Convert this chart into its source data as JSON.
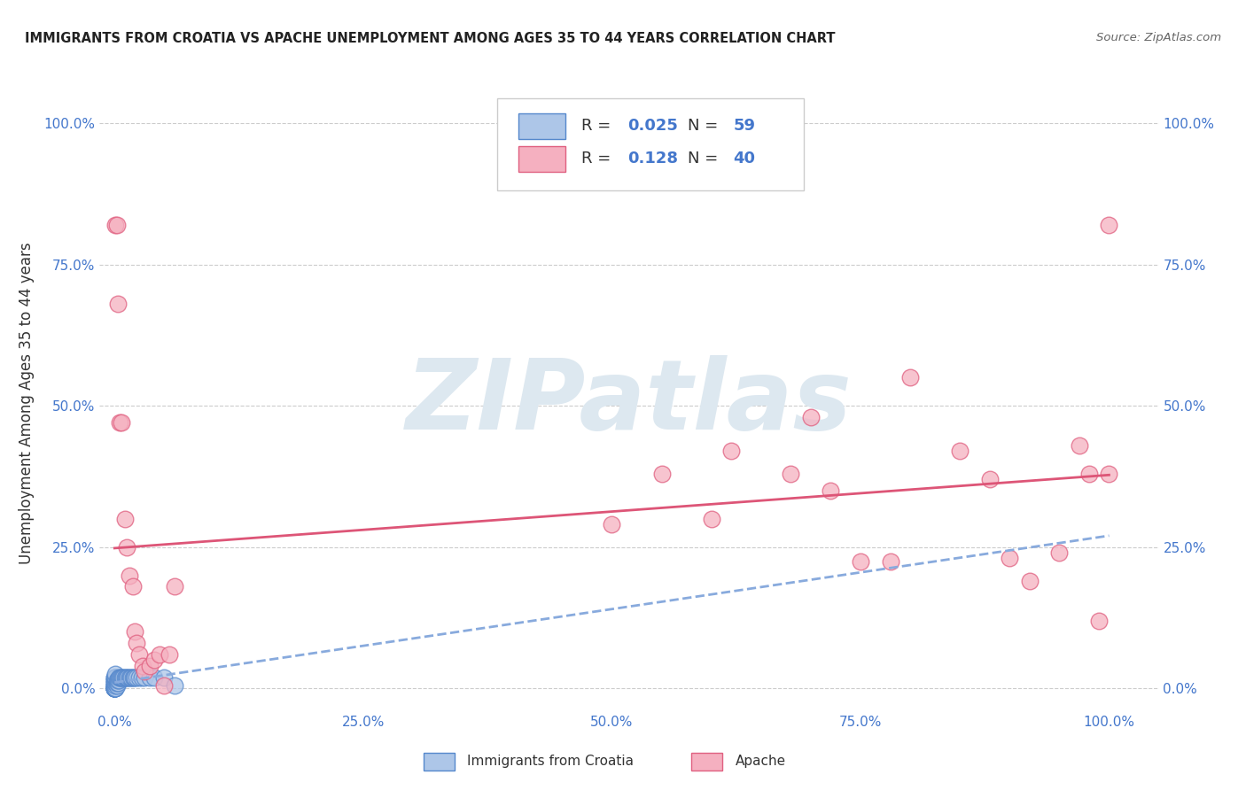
{
  "title": "IMMIGRANTS FROM CROATIA VS APACHE UNEMPLOYMENT AMONG AGES 35 TO 44 YEARS CORRELATION CHART",
  "source": "Source: ZipAtlas.com",
  "ylabel": "Unemployment Among Ages 35 to 44 years",
  "legend_labels": [
    "Immigrants from Croatia",
    "Apache"
  ],
  "r_values": [
    0.025,
    0.128
  ],
  "n_values": [
    59,
    40
  ],
  "blue_fill": "#adc6e8",
  "blue_edge": "#5588cc",
  "pink_fill": "#f5b0c0",
  "pink_edge": "#e06080",
  "blue_line_color": "#88aadd",
  "pink_line_color": "#dd5577",
  "axis_tick_color": "#4477cc",
  "title_color": "#222222",
  "source_color": "#666666",
  "watermark_color": "#dde8f0",
  "grid_color": "#cccccc",
  "background_color": "#ffffff",
  "blue_x": [
    0.0,
    0.0,
    0.0,
    0.0,
    0.0,
    0.0,
    0.0,
    0.0,
    0.0,
    0.0,
    0.0,
    0.0,
    0.0,
    0.0,
    0.0,
    0.0,
    0.0,
    0.0,
    0.0,
    0.0,
    0.001,
    0.001,
    0.001,
    0.001,
    0.001,
    0.001,
    0.001,
    0.001,
    0.001,
    0.002,
    0.002,
    0.002,
    0.003,
    0.003,
    0.004,
    0.004,
    0.005,
    0.006,
    0.007,
    0.008,
    0.009,
    0.01,
    0.011,
    0.012,
    0.013,
    0.015,
    0.016,
    0.017,
    0.018,
    0.019,
    0.02,
    0.022,
    0.025,
    0.027,
    0.03,
    0.035,
    0.04,
    0.05,
    0.06
  ],
  "blue_y": [
    0.0,
    0.0,
    0.0,
    0.0,
    0.0,
    0.0,
    0.0,
    0.0,
    0.0,
    0.0,
    0.005,
    0.005,
    0.005,
    0.01,
    0.01,
    0.015,
    0.015,
    0.02,
    0.02,
    0.0,
    0.0,
    0.0,
    0.005,
    0.01,
    0.01,
    0.015,
    0.02,
    0.02,
    0.025,
    0.005,
    0.01,
    0.015,
    0.01,
    0.015,
    0.015,
    0.02,
    0.02,
    0.02,
    0.02,
    0.02,
    0.02,
    0.02,
    0.02,
    0.02,
    0.02,
    0.02,
    0.02,
    0.02,
    0.02,
    0.02,
    0.02,
    0.02,
    0.02,
    0.02,
    0.02,
    0.02,
    0.02,
    0.02,
    0.005
  ],
  "pink_x": [
    0.001,
    0.002,
    0.003,
    0.005,
    0.007,
    0.01,
    0.012,
    0.015,
    0.018,
    0.02,
    0.022,
    0.025,
    0.028,
    0.03,
    0.035,
    0.04,
    0.045,
    0.05,
    0.055,
    0.06,
    0.55,
    0.62,
    0.68,
    0.72,
    0.78,
    0.8,
    0.85,
    0.88,
    0.9,
    0.92,
    0.95,
    0.97,
    0.98,
    0.99,
    1.0,
    1.0,
    0.5,
    0.6,
    0.7,
    0.75
  ],
  "pink_y": [
    0.82,
    0.82,
    0.68,
    0.47,
    0.47,
    0.3,
    0.25,
    0.2,
    0.18,
    0.1,
    0.08,
    0.06,
    0.04,
    0.03,
    0.04,
    0.05,
    0.06,
    0.005,
    0.06,
    0.18,
    0.38,
    0.42,
    0.38,
    0.35,
    0.225,
    0.55,
    0.42,
    0.37,
    0.23,
    0.19,
    0.24,
    0.43,
    0.38,
    0.12,
    0.82,
    0.38,
    0.29,
    0.3,
    0.48,
    0.225
  ],
  "grid_ticks": [
    0.0,
    0.25,
    0.5,
    0.75,
    1.0
  ],
  "tick_labels": [
    "0.0%",
    "25.0%",
    "50.0%",
    "75.0%",
    "100.0%"
  ],
  "xlim": [
    -0.015,
    1.05
  ],
  "ylim": [
    -0.04,
    1.05
  ]
}
